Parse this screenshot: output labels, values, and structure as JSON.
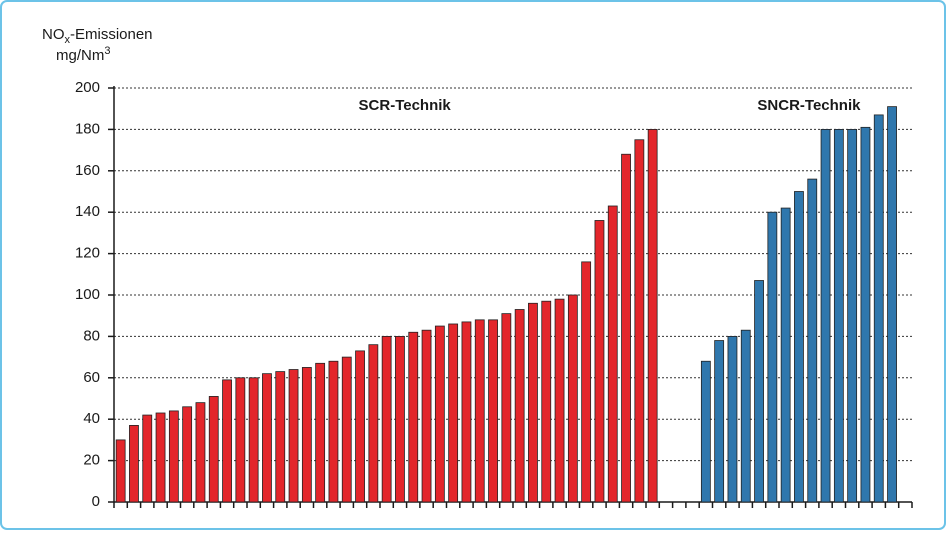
{
  "chart_data": {
    "type": "bar",
    "y_label": {
      "line1": {
        "base": "NO",
        "sub": "x",
        "rest": "-Emissionen"
      },
      "line2": {
        "base": "mg/Nm",
        "sup": "3"
      }
    },
    "ylim": [
      0,
      200
    ],
    "yticks": [
      0,
      20,
      40,
      60,
      80,
      100,
      120,
      140,
      160,
      180,
      200
    ],
    "grid": true,
    "series": [
      {
        "name": "SCR-Technik",
        "color": "#e3262b",
        "values": [
          30,
          37,
          42,
          43,
          44,
          46,
          48,
          51,
          59,
          60,
          60,
          62,
          63,
          64,
          65,
          67,
          68,
          70,
          73,
          76,
          80,
          80,
          82,
          83,
          85,
          86,
          87,
          88,
          88,
          91,
          93,
          96,
          97,
          98,
          100,
          116,
          136,
          143,
          168,
          175,
          180
        ]
      },
      {
        "name": "SNCR-Technik",
        "color": "#2f77ad",
        "values": [
          68,
          78,
          80,
          83,
          107,
          140,
          142,
          150,
          156,
          180,
          180,
          180,
          181,
          187,
          191
        ]
      }
    ]
  }
}
